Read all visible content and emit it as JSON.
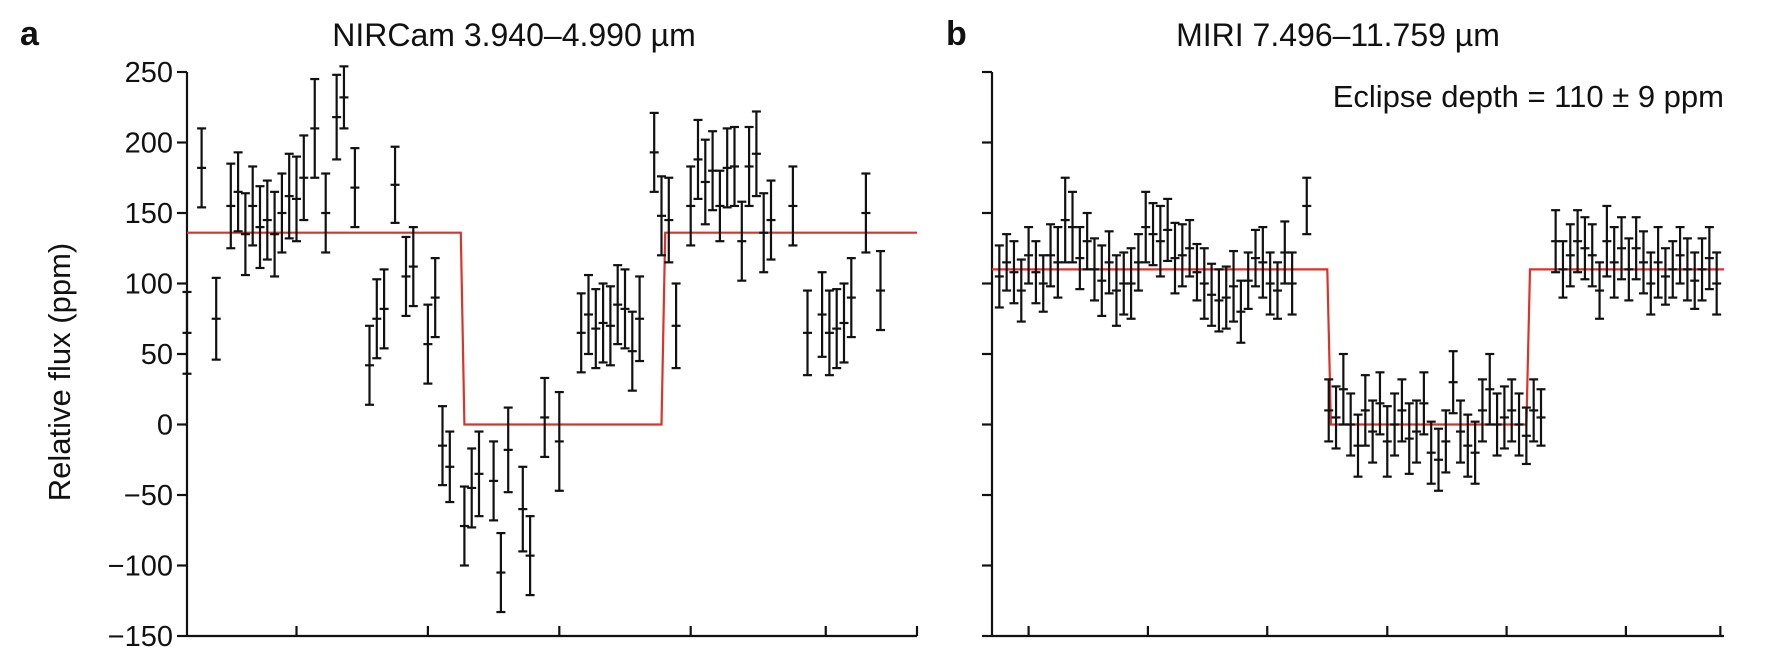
{
  "chart_data": [
    {
      "type": "scatter",
      "panel_label": "a",
      "title": "NIRCam 3.940–4.990 µm",
      "ylabel": "Relative flux (ppm)",
      "ylim": [
        -150,
        250
      ],
      "yticks": [
        "250",
        "200",
        "150",
        "100",
        "50",
        "0",
        "−50",
        "−100",
        "−150"
      ],
      "ytick_values": [
        250,
        200,
        150,
        100,
        50,
        0,
        -50,
        -100,
        -150
      ],
      "x_tick_count": 5,
      "series": [
        {
          "kind": "binned_data",
          "points": [
            [
              0.0,
              65,
              29
            ],
            [
              0.02,
              182,
              28
            ],
            [
              0.04,
              75,
              29
            ],
            [
              0.06,
              155,
              30
            ],
            [
              0.07,
              165,
              28
            ],
            [
              0.08,
              135,
              29
            ],
            [
              0.09,
              155,
              28
            ],
            [
              0.1,
              140,
              29
            ],
            [
              0.11,
              145,
              28
            ],
            [
              0.12,
              135,
              30
            ],
            [
              0.13,
              150,
              28
            ],
            [
              0.14,
              162,
              30
            ],
            [
              0.15,
              160,
              30
            ],
            [
              0.16,
              175,
              30
            ],
            [
              0.175,
              210,
              35
            ],
            [
              0.19,
              150,
              28
            ],
            [
              0.205,
              218,
              30
            ],
            [
              0.215,
              232,
              22
            ],
            [
              0.23,
              168,
              28
            ],
            [
              0.25,
              42,
              28
            ],
            [
              0.26,
              75,
              28
            ],
            [
              0.27,
              82,
              28
            ],
            [
              0.285,
              170,
              27
            ],
            [
              0.3,
              105,
              28
            ],
            [
              0.31,
              112,
              28
            ],
            [
              0.33,
              57,
              28
            ],
            [
              0.34,
              90,
              28
            ],
            [
              0.35,
              -15,
              28
            ],
            [
              0.36,
              -30,
              25
            ],
            [
              0.38,
              -72,
              28
            ],
            [
              0.39,
              -45,
              28
            ],
            [
              0.4,
              -35,
              30
            ],
            [
              0.42,
              -40,
              28
            ],
            [
              0.43,
              -105,
              28
            ],
            [
              0.44,
              -18,
              30
            ],
            [
              0.46,
              -60,
              30
            ],
            [
              0.47,
              -93,
              28
            ],
            [
              0.49,
              5,
              28
            ],
            [
              0.51,
              -12,
              35
            ],
            [
              0.54,
              65,
              28
            ],
            [
              0.55,
              78,
              28
            ],
            [
              0.56,
              68,
              28
            ],
            [
              0.57,
              72,
              28
            ],
            [
              0.58,
              70,
              28
            ],
            [
              0.59,
              85,
              28
            ],
            [
              0.6,
              82,
              28
            ],
            [
              0.61,
              52,
              28
            ],
            [
              0.62,
              75,
              30
            ],
            [
              0.64,
              193,
              28
            ],
            [
              0.65,
              148,
              28
            ],
            [
              0.66,
              145,
              30
            ],
            [
              0.67,
              70,
              30
            ],
            [
              0.69,
              155,
              28
            ],
            [
              0.7,
              188,
              28
            ],
            [
              0.71,
              172,
              30
            ],
            [
              0.72,
              180,
              28
            ],
            [
              0.73,
              155,
              25
            ],
            [
              0.74,
              182,
              28
            ],
            [
              0.75,
              183,
              28
            ],
            [
              0.76,
              130,
              28
            ],
            [
              0.77,
              183,
              28
            ],
            [
              0.78,
              192,
              30
            ],
            [
              0.79,
              136,
              28
            ],
            [
              0.8,
              145,
              28
            ],
            [
              0.83,
              155,
              28
            ],
            [
              0.85,
              65,
              30
            ],
            [
              0.87,
              78,
              30
            ],
            [
              0.88,
              65,
              30
            ],
            [
              0.89,
              68,
              28
            ],
            [
              0.9,
              72,
              28
            ],
            [
              0.91,
              90,
              28
            ],
            [
              0.93,
              150,
              28
            ],
            [
              0.95,
              95,
              28
            ]
          ]
        },
        {
          "kind": "eclipse_model",
          "points": [
            [
              0.0,
              136
            ],
            [
              0.375,
              136
            ],
            [
              0.38,
              0
            ],
            [
              0.65,
              0
            ],
            [
              0.655,
              136
            ],
            [
              1.0,
              136
            ]
          ]
        }
      ]
    },
    {
      "type": "scatter",
      "panel_label": "b",
      "title": "MIRI 7.496–11.759 µm",
      "annotation": "Eclipse depth  = 110 ± 9 ppm",
      "ylim": [
        -150,
        250
      ],
      "ytick_values": [
        250,
        200,
        150,
        100,
        50,
        0,
        -50,
        -100,
        -150
      ],
      "x_tick_count": 6,
      "series": [
        {
          "kind": "binned_data",
          "points": [
            [
              0.01,
              105,
              22
            ],
            [
              0.02,
              115,
              20
            ],
            [
              0.03,
              108,
              22
            ],
            [
              0.04,
              95,
              22
            ],
            [
              0.05,
              120,
              20
            ],
            [
              0.06,
              108,
              22
            ],
            [
              0.07,
              100,
              20
            ],
            [
              0.08,
              120,
              22
            ],
            [
              0.09,
              115,
              25
            ],
            [
              0.1,
              145,
              30
            ],
            [
              0.11,
              140,
              25
            ],
            [
              0.12,
              118,
              22
            ],
            [
              0.13,
              130,
              20
            ],
            [
              0.14,
              110,
              22
            ],
            [
              0.15,
              102,
              25
            ],
            [
              0.16,
              115,
              22
            ],
            [
              0.17,
              95,
              25
            ],
            [
              0.18,
              100,
              22
            ],
            [
              0.19,
              100,
              25
            ],
            [
              0.2,
              115,
              20
            ],
            [
              0.21,
              140,
              25
            ],
            [
              0.22,
              135,
              22
            ],
            [
              0.23,
              130,
              25
            ],
            [
              0.24,
              138,
              22
            ],
            [
              0.25,
              118,
              25
            ],
            [
              0.26,
              120,
              22
            ],
            [
              0.27,
              125,
              20
            ],
            [
              0.28,
              108,
              20
            ],
            [
              0.29,
              100,
              25
            ],
            [
              0.3,
              92,
              22
            ],
            [
              0.31,
              88,
              22
            ],
            [
              0.32,
              90,
              22
            ],
            [
              0.33,
              98,
              25
            ],
            [
              0.34,
              80,
              22
            ],
            [
              0.35,
              102,
              20
            ],
            [
              0.36,
              118,
              20
            ],
            [
              0.37,
              115,
              25
            ],
            [
              0.38,
              100,
              22
            ],
            [
              0.39,
              95,
              20
            ],
            [
              0.4,
              122,
              22
            ],
            [
              0.41,
              100,
              22
            ],
            [
              0.43,
              155,
              20
            ],
            [
              0.46,
              10,
              22
            ],
            [
              0.47,
              5,
              22
            ],
            [
              0.48,
              25,
              25
            ],
            [
              0.49,
              0,
              22
            ],
            [
              0.5,
              -15,
              22
            ],
            [
              0.51,
              10,
              25
            ],
            [
              0.52,
              -5,
              22
            ],
            [
              0.53,
              15,
              22
            ],
            [
              0.54,
              -12,
              25
            ],
            [
              0.55,
              0,
              22
            ],
            [
              0.56,
              10,
              22
            ],
            [
              0.57,
              -10,
              25
            ],
            [
              0.58,
              -5,
              22
            ],
            [
              0.59,
              15,
              22
            ],
            [
              0.6,
              -20,
              22
            ],
            [
              0.61,
              -25,
              22
            ],
            [
              0.62,
              -12,
              22
            ],
            [
              0.63,
              30,
              22
            ],
            [
              0.64,
              -5,
              22
            ],
            [
              0.65,
              -15,
              22
            ],
            [
              0.66,
              -20,
              22
            ],
            [
              0.67,
              10,
              22
            ],
            [
              0.68,
              25,
              25
            ],
            [
              0.69,
              0,
              22
            ],
            [
              0.7,
              5,
              22
            ],
            [
              0.71,
              10,
              22
            ],
            [
              0.72,
              0,
              22
            ],
            [
              0.73,
              -8,
              20
            ],
            [
              0.74,
              10,
              22
            ],
            [
              0.75,
              5,
              20
            ],
            [
              0.77,
              130,
              22
            ],
            [
              0.78,
              110,
              20
            ],
            [
              0.79,
              120,
              22
            ],
            [
              0.8,
              130,
              22
            ],
            [
              0.81,
              125,
              22
            ],
            [
              0.82,
              120,
              22
            ],
            [
              0.83,
              95,
              20
            ],
            [
              0.84,
              130,
              25
            ],
            [
              0.85,
              115,
              25
            ],
            [
              0.86,
              125,
              22
            ],
            [
              0.87,
              110,
              22
            ],
            [
              0.88,
              125,
              22
            ],
            [
              0.89,
              115,
              22
            ],
            [
              0.9,
              100,
              22
            ],
            [
              0.91,
              115,
              25
            ],
            [
              0.92,
              105,
              20
            ],
            [
              0.93,
              110,
              20
            ],
            [
              0.94,
              120,
              20
            ],
            [
              0.95,
              110,
              22
            ],
            [
              0.96,
              102,
              20
            ],
            [
              0.97,
              110,
              22
            ],
            [
              0.98,
              118,
              22
            ],
            [
              0.99,
              100,
              22
            ]
          ]
        },
        {
          "kind": "eclipse_model",
          "points": [
            [
              0.0,
              110
            ],
            [
              0.458,
              110
            ],
            [
              0.463,
              0
            ],
            [
              0.73,
              0
            ],
            [
              0.735,
              110
            ],
            [
              1.0,
              110
            ]
          ]
        }
      ]
    }
  ],
  "colors": {
    "model": "#d9342b",
    "data": "#111111",
    "background": "#ffffff"
  }
}
